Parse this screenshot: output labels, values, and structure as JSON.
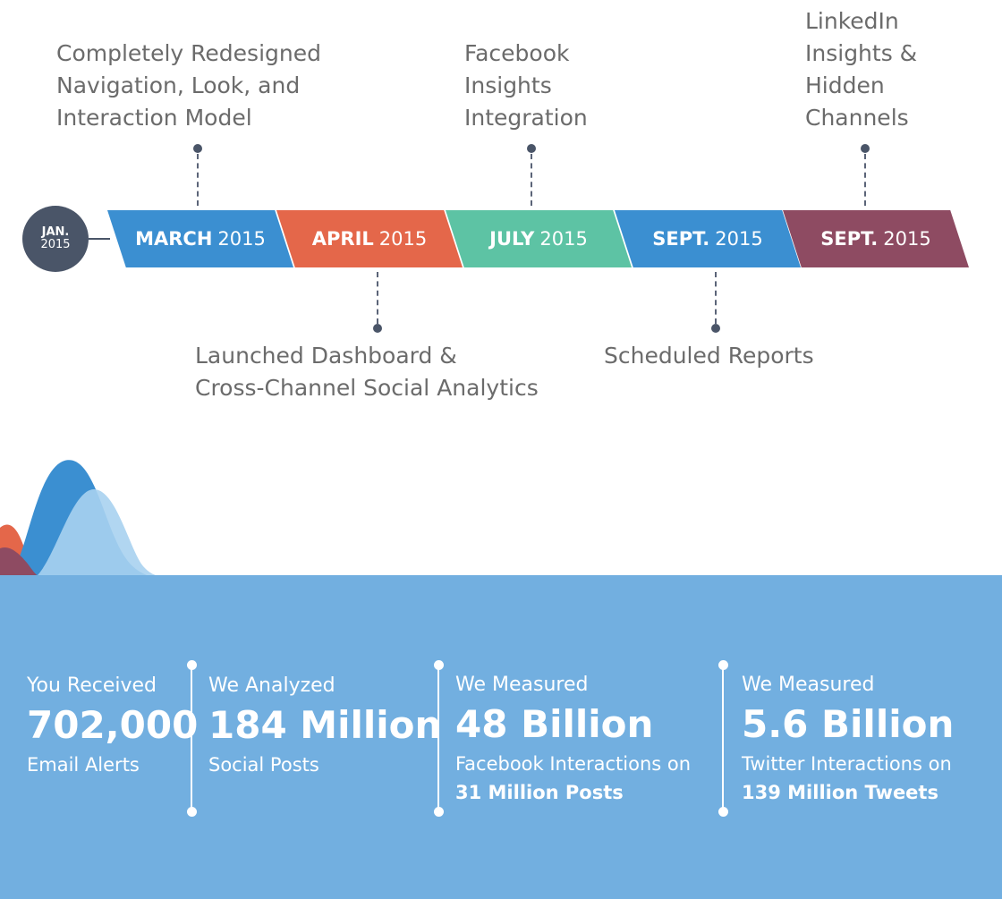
{
  "timeline": {
    "start": {
      "month": "JAN.",
      "year": "2015"
    },
    "ribbons": [
      {
        "bold": "MARCH",
        "year": "2015",
        "color": "#3b8fd1"
      },
      {
        "bold": "APRIL",
        "year": "2015",
        "color": "#e4674a"
      },
      {
        "bold": "JULY",
        "year": "2015",
        "color": "#5dc3a4"
      },
      {
        "bold": "SEPT.",
        "year": "2015",
        "color": "#3b8fd1"
      },
      {
        "bold": "SEPT.",
        "year": "2015",
        "color": "#8e4b62"
      }
    ],
    "milestones_top": [
      {
        "lines": [
          "Completely Redesigned",
          "Navigation, Look, and",
          "Interaction Model"
        ]
      },
      {
        "lines": [
          "Facebook",
          "Insights",
          "Integration"
        ]
      },
      {
        "lines": [
          "LinkedIn",
          "Insights &",
          "Hidden",
          "Channels"
        ]
      }
    ],
    "milestones_bottom": [
      {
        "lines": [
          "Launched Dashboard &",
          "Cross-Channel Social Analytics"
        ]
      },
      {
        "lines": [
          "Scheduled Reports"
        ]
      }
    ]
  },
  "stats": [
    {
      "pre": "You Received",
      "big": "702,000",
      "post": "Email Alerts",
      "post2": ""
    },
    {
      "pre": "We Analyzed",
      "big": "184 Million",
      "post": "Social Posts",
      "post2": ""
    },
    {
      "pre": "We Measured",
      "big": "48 Billion",
      "post": "Facebook Interactions on",
      "post2": "31 Million Posts"
    },
    {
      "pre": "We Measured",
      "big": "5.6 Billion",
      "post": "Twitter Interactions on",
      "post2": "139 Million Tweets"
    }
  ],
  "colors": {
    "band": "#72afe0",
    "dark": "#4a5568",
    "text_gray": "#6b6b6b"
  }
}
